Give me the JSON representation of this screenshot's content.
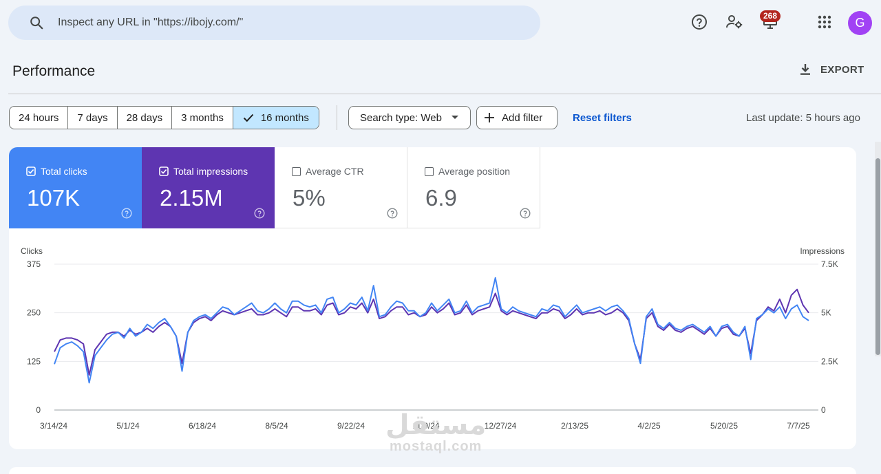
{
  "search": {
    "placeholder": "Inspect any URL in \"https://ibojy.com/\""
  },
  "header": {
    "notification_count": "268",
    "avatar_letter": "G"
  },
  "page": {
    "title": "Performance",
    "export_label": "EXPORT"
  },
  "filters": {
    "date_ranges": [
      "24 hours",
      "7 days",
      "28 days",
      "3 months",
      "16 months"
    ],
    "active_range": "16 months",
    "search_type": "Search type: Web",
    "add_filter": "Add filter",
    "reset": "Reset filters",
    "last_update": "Last update: 5 hours ago"
  },
  "metrics": [
    {
      "label": "Total clicks",
      "value": "107K",
      "checked": true,
      "color": "#4285f4"
    },
    {
      "label": "Total impressions",
      "value": "2.15M",
      "checked": true,
      "color": "#5e35b1"
    },
    {
      "label": "Average CTR",
      "value": "5%",
      "checked": false
    },
    {
      "label": "Average position",
      "value": "6.9",
      "checked": false
    }
  ],
  "watermark": {
    "arabic": "مستقل",
    "latin": "mostaql.com"
  },
  "chart_data": {
    "type": "line",
    "ylabel_left": "Clicks",
    "ylabel_right": "Impressions",
    "y_left_ticks": [
      "375",
      "250",
      "125",
      "0"
    ],
    "y_right_ticks": [
      "7.5K",
      "5K",
      "2.5K",
      "0"
    ],
    "ylim_left": [
      0,
      375
    ],
    "ylim_right": [
      0,
      7500
    ],
    "x_ticks": [
      "3/14/24",
      "5/1/24",
      "6/18/24",
      "8/5/24",
      "9/22/24",
      "11/9/24",
      "12/27/24",
      "2/13/25",
      "4/2/25",
      "5/20/25",
      "7/7/25"
    ],
    "x_start": "3/14/24",
    "x_end": "7/11/25",
    "grid": true,
    "series": [
      {
        "name": "Clicks",
        "axis": "left",
        "color": "#4285f4",
        "values": [
          118,
          160,
          170,
          175,
          165,
          150,
          70,
          140,
          160,
          180,
          195,
          200,
          185,
          210,
          190,
          200,
          220,
          210,
          225,
          235,
          215,
          190,
          100,
          200,
          230,
          240,
          245,
          235,
          250,
          265,
          260,
          245,
          255,
          265,
          275,
          255,
          250,
          260,
          275,
          260,
          250,
          280,
          280,
          270,
          265,
          270,
          250,
          285,
          290,
          250,
          260,
          275,
          270,
          290,
          255,
          320,
          240,
          245,
          265,
          280,
          275,
          255,
          255,
          240,
          250,
          275,
          255,
          270,
          285,
          250,
          255,
          280,
          250,
          265,
          270,
          275,
          340,
          260,
          250,
          265,
          255,
          250,
          245,
          240,
          260,
          255,
          270,
          265,
          240,
          255,
          270,
          250,
          255,
          260,
          265,
          255,
          265,
          270,
          255,
          235,
          170,
          120,
          240,
          260,
          220,
          210,
          225,
          210,
          205,
          215,
          220,
          210,
          200,
          215,
          190,
          215,
          220,
          200,
          190,
          215,
          130,
          235,
          245,
          260,
          250,
          265,
          235,
          260,
          270,
          240,
          230
        ]
      },
      {
        "name": "Impressions",
        "axis": "right",
        "color": "#5e35b1",
        "values": [
          3000,
          3600,
          3700,
          3700,
          3600,
          3400,
          1800,
          3100,
          3500,
          3900,
          4000,
          4000,
          3800,
          4100,
          3900,
          4000,
          4200,
          4000,
          4300,
          4500,
          4300,
          3800,
          2400,
          4000,
          4500,
          4700,
          4800,
          4600,
          4900,
          5100,
          5000,
          4900,
          5000,
          5100,
          5200,
          4900,
          4900,
          5000,
          5200,
          5000,
          4800,
          5300,
          5300,
          5100,
          5100,
          5200,
          4900,
          5400,
          5500,
          4900,
          5000,
          5300,
          5200,
          5500,
          5000,
          5700,
          4700,
          4800,
          5100,
          5300,
          5300,
          4900,
          5000,
          4800,
          4900,
          5300,
          5000,
          5200,
          5500,
          4900,
          5000,
          5400,
          4900,
          5100,
          5200,
          5300,
          6000,
          5100,
          4900,
          5100,
          5000,
          4900,
          4800,
          4700,
          5000,
          5000,
          5200,
          5100,
          4700,
          4900,
          5200,
          4900,
          5000,
          5000,
          5100,
          4900,
          5000,
          5200,
          5000,
          4600,
          3400,
          2600,
          4700,
          5000,
          4300,
          4100,
          4400,
          4100,
          4000,
          4200,
          4300,
          4100,
          3900,
          4200,
          3800,
          4200,
          4300,
          3900,
          3800,
          4200,
          2900,
          4600,
          4900,
          5300,
          5100,
          5700,
          5000,
          5900,
          6200,
          5400,
          5000
        ]
      }
    ]
  }
}
